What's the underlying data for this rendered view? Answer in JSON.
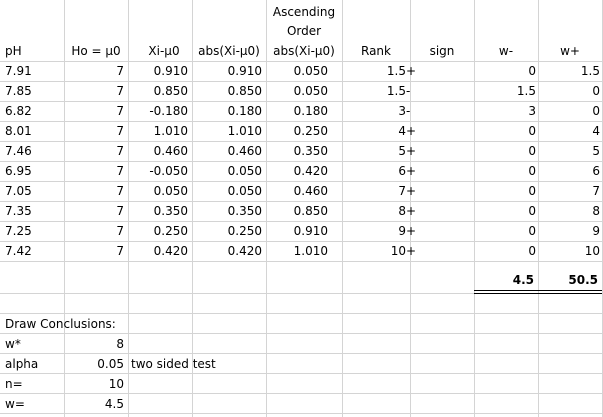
{
  "headers": {
    "ph": "pH",
    "ho": "Ho = μ0",
    "diff": "Xi-μ0",
    "abs": "abs(Xi-μ0)",
    "asc_line1": "Ascending",
    "asc_line2": "Order",
    "asc_line3": "abs(Xi-μ0)",
    "rank": "Rank",
    "sign": "sign",
    "wminus": "w-",
    "wplus": "w+"
  },
  "rows": [
    {
      "ph": "7.91",
      "ho": "7",
      "diff": "0.910",
      "abs": "0.910",
      "asc": "0.050",
      "rank": "1.5",
      "sign": "+",
      "wminus": "0",
      "wplus": "1.5"
    },
    {
      "ph": "7.85",
      "ho": "7",
      "diff": "0.850",
      "abs": "0.850",
      "asc": "0.050",
      "rank": "1.5",
      "sign": "-",
      "wminus": "1.5",
      "wplus": "0"
    },
    {
      "ph": "6.82",
      "ho": "7",
      "diff": "-0.180",
      "abs": "0.180",
      "asc": "0.180",
      "rank": "3",
      "sign": "-",
      "wminus": "3",
      "wplus": "0"
    },
    {
      "ph": "8.01",
      "ho": "7",
      "diff": "1.010",
      "abs": "1.010",
      "asc": "0.250",
      "rank": "4",
      "sign": "+",
      "wminus": "0",
      "wplus": "4"
    },
    {
      "ph": "7.46",
      "ho": "7",
      "diff": "0.460",
      "abs": "0.460",
      "asc": "0.350",
      "rank": "5",
      "sign": "+",
      "wminus": "0",
      "wplus": "5"
    },
    {
      "ph": "6.95",
      "ho": "7",
      "diff": "-0.050",
      "abs": "0.050",
      "asc": "0.420",
      "rank": "6",
      "sign": "+",
      "wminus": "0",
      "wplus": "6"
    },
    {
      "ph": "7.05",
      "ho": "7",
      "diff": "0.050",
      "abs": "0.050",
      "asc": "0.460",
      "rank": "7",
      "sign": "+",
      "wminus": "0",
      "wplus": "7"
    },
    {
      "ph": "7.35",
      "ho": "7",
      "diff": "0.350",
      "abs": "0.350",
      "asc": "0.850",
      "rank": "8",
      "sign": "+",
      "wminus": "0",
      "wplus": "8"
    },
    {
      "ph": "7.25",
      "ho": "7",
      "diff": "0.250",
      "abs": "0.250",
      "asc": "0.910",
      "rank": "9",
      "sign": "+",
      "wminus": "0",
      "wplus": "9"
    },
    {
      "ph": "7.42",
      "ho": "7",
      "diff": "0.420",
      "abs": "0.420",
      "asc": "1.010",
      "rank": "10",
      "sign": "+",
      "wminus": "0",
      "wplus": "10"
    }
  ],
  "totals": {
    "wminus": "4.5",
    "wplus": "50.5"
  },
  "conclusions": {
    "title": "Draw Conclusions:",
    "items": [
      {
        "label": "w*",
        "value": "8",
        "note": ""
      },
      {
        "label": "alpha",
        "value": "0.05",
        "note": "two sided test"
      },
      {
        "label": "n=",
        "value": "10",
        "note": ""
      },
      {
        "label": "w=",
        "value": "4.5",
        "note": ""
      }
    ]
  }
}
